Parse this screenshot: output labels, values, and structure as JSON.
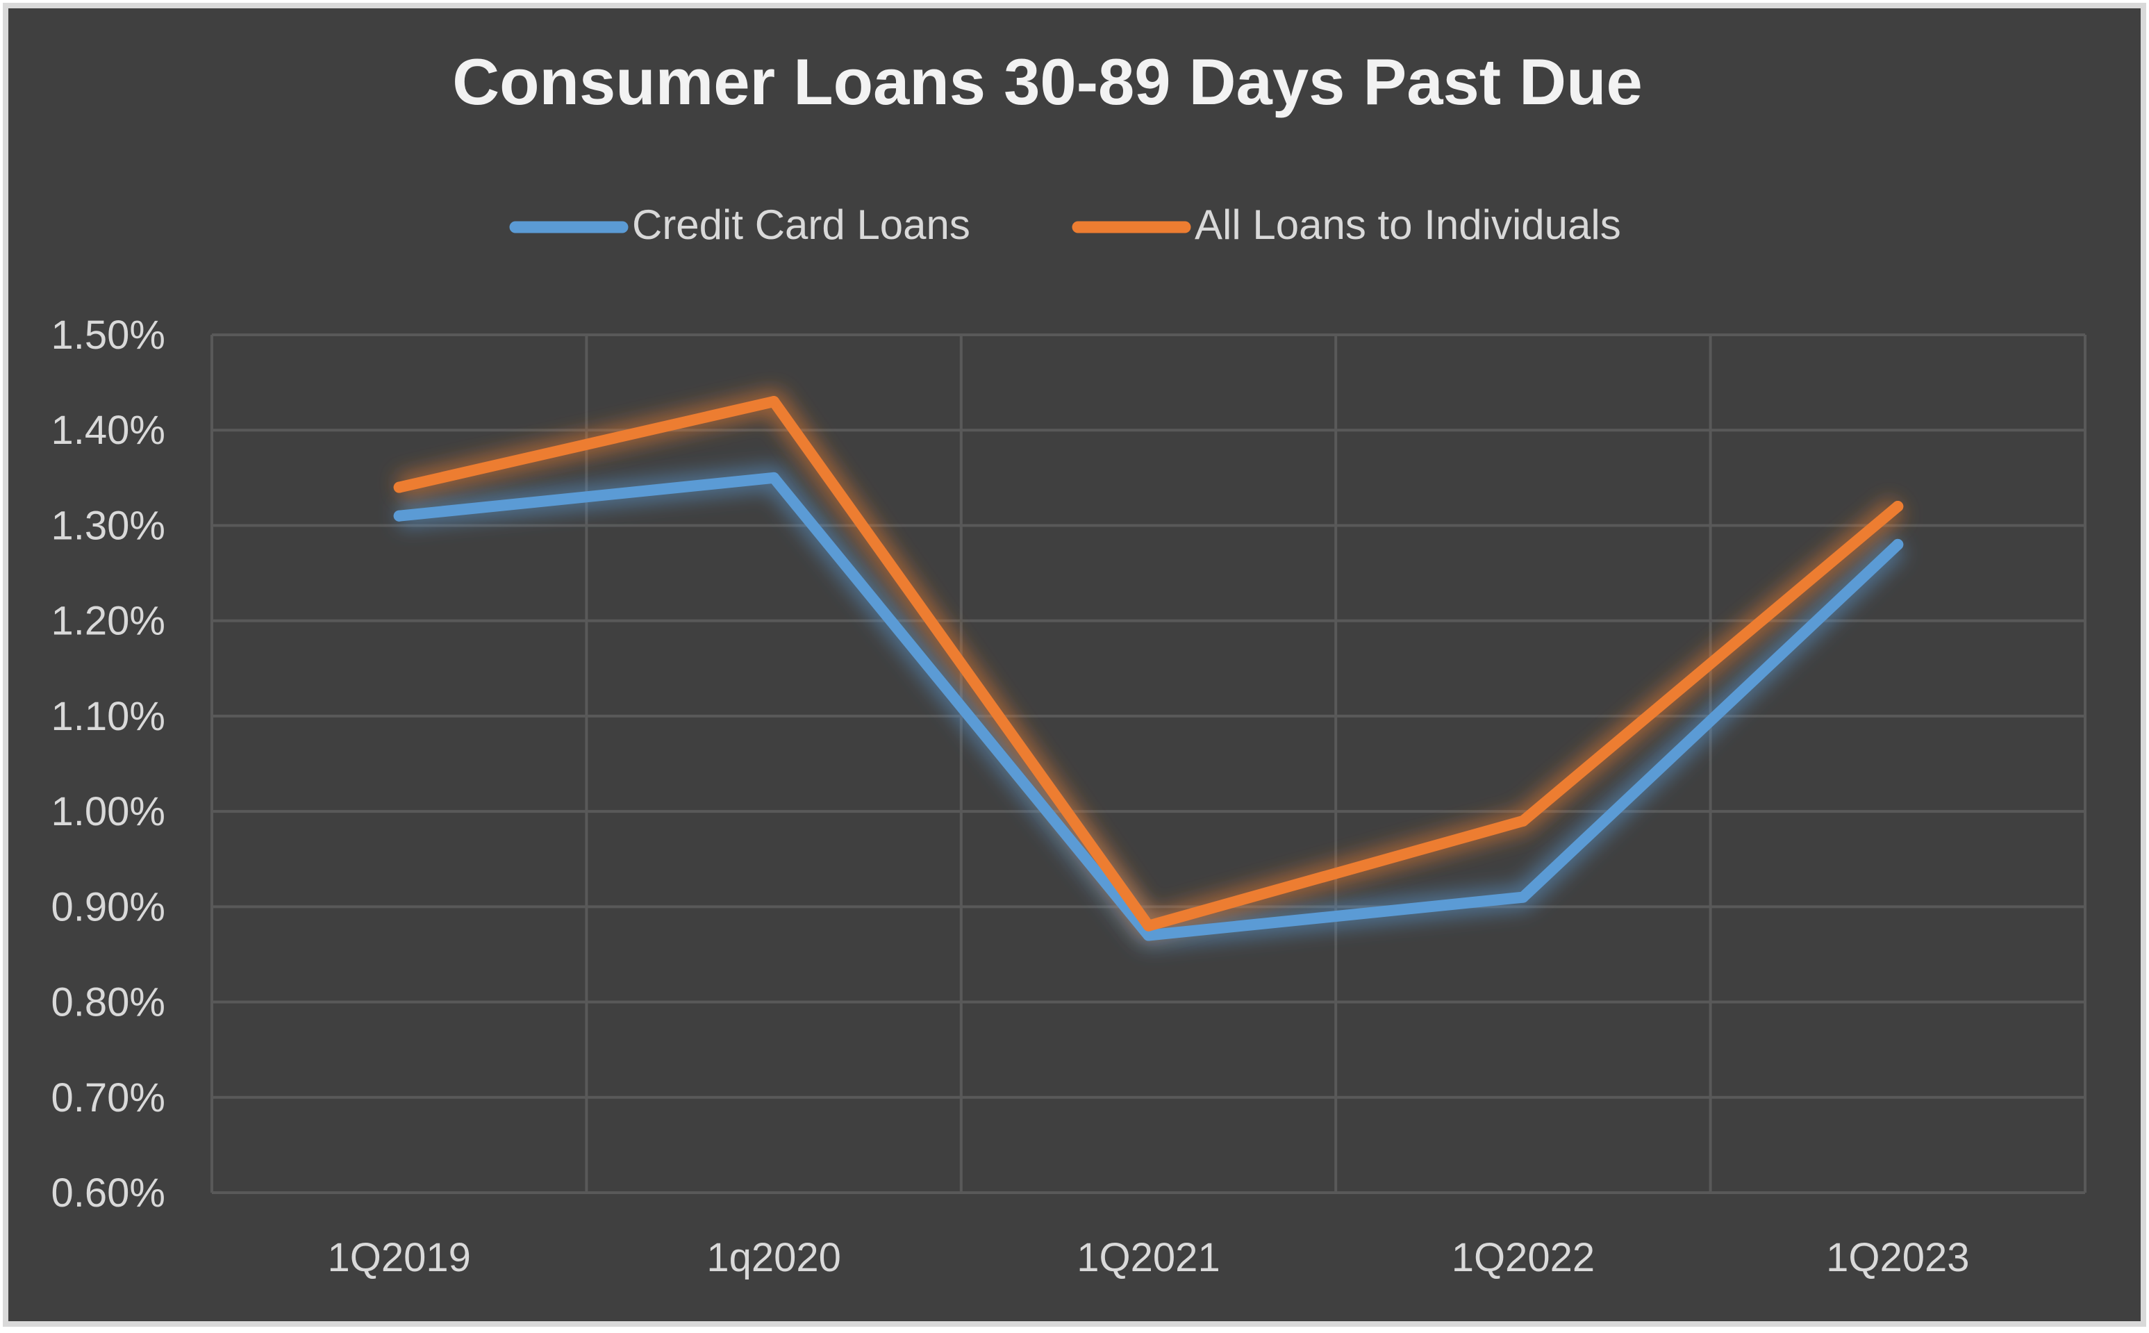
{
  "chart_data": {
    "type": "line",
    "title": "Consumer Loans 30-89 Days Past Due",
    "xlabel": "",
    "ylabel": "",
    "categories": [
      "1Q2019",
      "1q2020",
      "1Q2021",
      "1Q2022",
      "1Q2023"
    ],
    "series": [
      {
        "name": "Credit Card Loans",
        "color": "#5b9bd5",
        "values": [
          1.31,
          1.35,
          0.87,
          0.91,
          1.28
        ]
      },
      {
        "name": "All Loans to Individuals",
        "color": "#ed7d31",
        "values": [
          1.34,
          1.43,
          0.88,
          0.99,
          1.32
        ]
      }
    ],
    "ylim": [
      0.6,
      1.5
    ],
    "y_ticks": [
      "0.60%",
      "0.70%",
      "0.80%",
      "0.90%",
      "1.00%",
      "1.10%",
      "1.20%",
      "1.30%",
      "1.40%",
      "1.50%"
    ],
    "grid": true,
    "legend_position": "top-center",
    "colors": {
      "background": "#404040",
      "border": "#d9d9d9",
      "gridline": "#595959",
      "title_text": "#f2f2f2",
      "label_text": "#d9d9d9"
    }
  }
}
